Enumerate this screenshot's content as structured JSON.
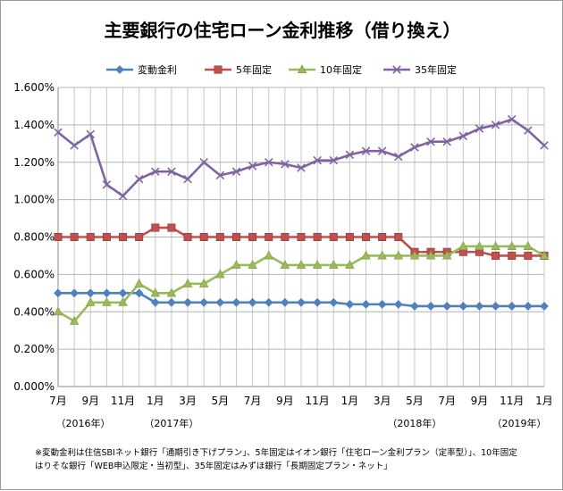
{
  "chart_data": {
    "type": "line",
    "title": "主要銀行の住宅ローン金利推移（借り換え）",
    "x_tick_labels": [
      "7月",
      "9月",
      "11月",
      "1月",
      "3月",
      "5月",
      "7月",
      "9月",
      "11月",
      "1月",
      "3月",
      "5月",
      "7月",
      "9月",
      "11月",
      "1月"
    ],
    "year_labels": [
      "（2016年）",
      "（2017年）",
      "（2018年）",
      "（2019年）"
    ],
    "y_tick_labels": [
      "0.000%",
      "0.200%",
      "0.400%",
      "0.600%",
      "0.800%",
      "1.000%",
      "1.200%",
      "1.400%",
      "1.600%"
    ],
    "ylim": [
      0,
      1.6
    ],
    "y_unit": "%",
    "grid": true,
    "legend_position": "top",
    "x": [
      "2016-07",
      "2016-08",
      "2016-09",
      "2016-10",
      "2016-11",
      "2016-12",
      "2017-01",
      "2017-02",
      "2017-03",
      "2017-04",
      "2017-05",
      "2017-06",
      "2017-07",
      "2017-08",
      "2017-09",
      "2017-10",
      "2017-11",
      "2017-12",
      "2018-01",
      "2018-02",
      "2018-03",
      "2018-04",
      "2018-05",
      "2018-06",
      "2018-07",
      "2018-08",
      "2018-09",
      "2018-10",
      "2018-11",
      "2018-12",
      "2019-01"
    ],
    "series": [
      {
        "name": "変動金利",
        "color": "#4f81bd",
        "marker": "diamond",
        "values": [
          0.5,
          0.5,
          0.5,
          0.5,
          0.5,
          0.5,
          0.45,
          0.45,
          0.45,
          0.45,
          0.45,
          0.45,
          0.45,
          0.45,
          0.45,
          0.45,
          0.45,
          0.45,
          0.44,
          0.44,
          0.44,
          0.44,
          0.43,
          0.43,
          0.43,
          0.43,
          0.43,
          0.43,
          0.43,
          0.43,
          0.43
        ]
      },
      {
        "name": "5年固定",
        "color": "#c0504d",
        "marker": "square",
        "values": [
          0.8,
          0.8,
          0.8,
          0.8,
          0.8,
          0.8,
          0.85,
          0.85,
          0.8,
          0.8,
          0.8,
          0.8,
          0.8,
          0.8,
          0.8,
          0.8,
          0.8,
          0.8,
          0.8,
          0.8,
          0.8,
          0.8,
          0.72,
          0.72,
          0.72,
          0.72,
          0.72,
          0.7,
          0.7,
          0.7,
          0.7
        ]
      },
      {
        "name": "10年固定",
        "color": "#9bbb59",
        "marker": "triangle",
        "values": [
          0.4,
          0.35,
          0.45,
          0.45,
          0.45,
          0.55,
          0.5,
          0.5,
          0.55,
          0.55,
          0.6,
          0.65,
          0.65,
          0.7,
          0.65,
          0.65,
          0.65,
          0.65,
          0.65,
          0.7,
          0.7,
          0.7,
          0.7,
          0.7,
          0.7,
          0.75,
          0.75,
          0.75,
          0.75,
          0.75,
          0.7
        ]
      },
      {
        "name": "35年固定",
        "color": "#8064a2",
        "marker": "x",
        "values": [
          1.36,
          1.29,
          1.35,
          1.08,
          1.02,
          1.11,
          1.15,
          1.15,
          1.11,
          1.2,
          1.13,
          1.15,
          1.18,
          1.2,
          1.19,
          1.17,
          1.21,
          1.21,
          1.24,
          1.26,
          1.26,
          1.23,
          1.28,
          1.31,
          1.31,
          1.34,
          1.38,
          1.4,
          1.43,
          1.37,
          1.29
        ]
      }
    ]
  },
  "footnote": {
    "line1": "※変動金利は住信SBIネット銀行「通期引き下げプラン」、5年固定はイオン銀行「住宅ローン金利プラン（定率型）」、10年固定",
    "line2": "はりそな銀行「WEB申込限定・当初型」、35年固定はみずほ銀行「長期固定プラン・ネット」"
  }
}
